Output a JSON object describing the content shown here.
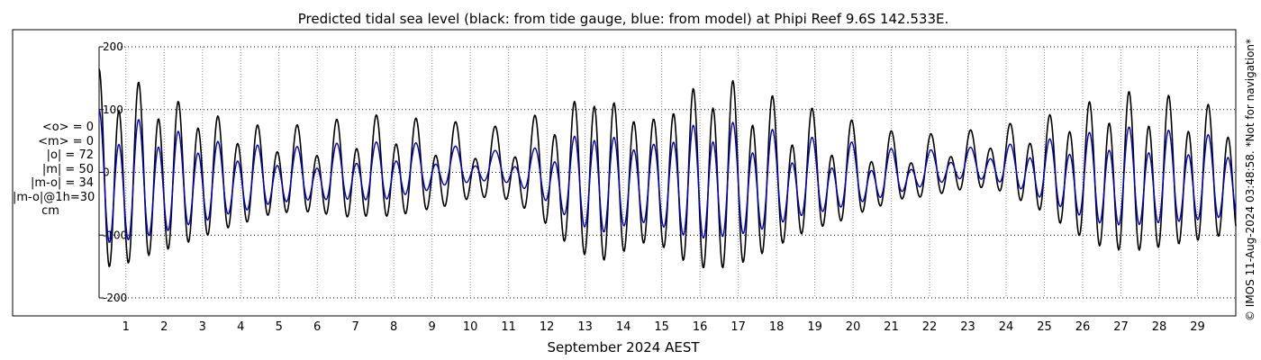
{
  "chart_data": {
    "type": "line",
    "title": "Predicted tidal sea level (black: from tide gauge, blue: from model) at Phipi Reef 9.6S 142.533E.",
    "xlabel": "September 2024 AEST",
    "ylabel": "",
    "ylim": [
      -200,
      200
    ],
    "yticks": [
      -200,
      -100,
      0,
      100,
      200
    ],
    "yticklabels": [
      "-200",
      "-100",
      "0",
      "100",
      "200"
    ],
    "xlim": [
      0.3,
      30.0
    ],
    "xticks": [
      1,
      2,
      3,
      4,
      5,
      6,
      7,
      8,
      9,
      10,
      11,
      12,
      13,
      14,
      15,
      16,
      17,
      18,
      19,
      20,
      21,
      22,
      23,
      24,
      25,
      26,
      27,
      28,
      29
    ],
    "xticklabels": [
      "1",
      "2",
      "3",
      "4",
      "5",
      "6",
      "7",
      "8",
      "9",
      "10",
      "11",
      "12",
      "13",
      "14",
      "15",
      "16",
      "17",
      "18",
      "19",
      "20",
      "21",
      "22",
      "23",
      "24",
      "25",
      "26",
      "27",
      "28",
      "29"
    ],
    "grid": true,
    "colors": {
      "gauge": "#000000",
      "model": "#0000cc",
      "grid": "#808080"
    },
    "series": [
      {
        "key": "gauge",
        "x": [
          0.3,
          0.8,
          1.3,
          1.8,
          2.3,
          2.8,
          3.3,
          3.8,
          4.3,
          4.8,
          5.3,
          5.8,
          6.3,
          6.8,
          7.3,
          7.8,
          8.3,
          8.8,
          9.3,
          9.8,
          10.3,
          10.8,
          11.3,
          11.8,
          12.3,
          12.8,
          13.3,
          13.8,
          14.3,
          14.8,
          15.3,
          15.8,
          16.3,
          16.8,
          17.3,
          17.8,
          18.3,
          18.8,
          19.3,
          19.8,
          20.3,
          20.8,
          21.3,
          21.8,
          22.3,
          22.8,
          23.3,
          23.8,
          24.3,
          24.8,
          25.3,
          25.8,
          26.3,
          26.8,
          27.3,
          27.8,
          28.3,
          28.8,
          29.3,
          29.8
        ],
        "amp": [
          175,
          170,
          155,
          138,
          125,
          112,
          102,
          92,
          85,
          82,
          80,
          82,
          88,
          92,
          93,
          90,
          88,
          85,
          82,
          75,
          70,
          68,
          78,
          95,
          112,
          125,
          135,
          125,
          105,
          100,
          120,
          148,
          160,
          162,
          155,
          140,
          125,
          115,
          105,
          95,
          85,
          72,
          65,
          60,
          58,
          55,
          55,
          60,
          70,
          80,
          95,
          110,
          125,
          135,
          140,
          138,
          132,
          125,
          118,
          110
        ],
        "mean": [
          -10,
          -10,
          -10,
          -10,
          -10,
          -10,
          -10,
          -10,
          -10,
          -5,
          -5,
          -5,
          -5,
          -5,
          0,
          0,
          0,
          0,
          0,
          5,
          5,
          5,
          0,
          0,
          -10,
          -10,
          -15,
          -15,
          -15,
          -15,
          -15,
          -15,
          -15,
          -15,
          -15,
          -15,
          -15,
          -10,
          -10,
          -10,
          -5,
          -5,
          0,
          0,
          5,
          10,
          15,
          15,
          10,
          5,
          0,
          -5,
          -10,
          -10,
          -10,
          -10,
          -10,
          -10,
          -10,
          -10
        ],
        "diurnal": [
          0.25,
          0.22,
          0.2,
          0.18,
          0.15,
          0.15,
          0.18,
          0.22,
          0.28,
          0.35,
          0.4,
          0.45,
          0.45,
          0.42,
          0.35,
          0.3,
          0.35,
          0.45,
          0.55,
          0.6,
          0.62,
          0.6,
          0.5,
          0.35,
          0.2,
          0.1,
          0.05,
          0.05,
          0.05,
          0.05,
          0.05,
          0.1,
          0.15,
          0.2,
          0.25,
          0.3,
          0.35,
          0.4,
          0.45,
          0.5,
          0.55,
          0.6,
          0.62,
          0.6,
          0.55,
          0.5,
          0.45,
          0.4,
          0.35,
          0.3,
          0.25,
          0.2,
          0.2,
          0.2,
          0.22,
          0.25,
          0.25,
          0.25,
          0.25,
          0.25
        ]
      },
      {
        "key": "model",
        "x": [
          0.3,
          0.8,
          1.3,
          1.8,
          2.3,
          2.8,
          3.3,
          3.8,
          4.3,
          4.8,
          5.3,
          5.8,
          6.3,
          6.8,
          7.3,
          7.8,
          8.3,
          8.8,
          9.3,
          9.8,
          10.3,
          10.8,
          11.3,
          11.8,
          12.3,
          12.8,
          13.3,
          13.8,
          14.3,
          14.8,
          15.3,
          15.8,
          16.3,
          16.8,
          17.3,
          17.8,
          18.3,
          18.8,
          19.3,
          19.8,
          20.3,
          20.8,
          21.3,
          21.8,
          22.3,
          22.8,
          23.3,
          23.8,
          24.3,
          24.8,
          25.3,
          25.8,
          26.3,
          26.8,
          27.3,
          27.8,
          28.3,
          28.8,
          29.3,
          29.8
        ],
        "amp": [
          120,
          115,
          105,
          95,
          85,
          75,
          68,
          62,
          58,
          55,
          52,
          50,
          52,
          55,
          55,
          52,
          50,
          45,
          40,
          35,
          30,
          30,
          35,
          45,
          60,
          75,
          85,
          75,
          65,
          65,
          80,
          95,
          100,
          100,
          98,
          90,
          80,
          72,
          68,
          62,
          55,
          48,
          40,
          35,
          32,
          30,
          30,
          35,
          40,
          50,
          60,
          70,
          80,
          85,
          88,
          85,
          82,
          80,
          75,
          72
        ],
        "mean": [
          -20,
          -20,
          -20,
          -20,
          -18,
          -18,
          -18,
          -15,
          -15,
          -10,
          -10,
          -10,
          -8,
          -5,
          -5,
          -5,
          0,
          0,
          5,
          5,
          5,
          5,
          0,
          -5,
          -15,
          -15,
          -20,
          -20,
          -20,
          -20,
          -20,
          -20,
          -20,
          -20,
          -20,
          -20,
          -18,
          -15,
          -15,
          -12,
          -10,
          -8,
          -5,
          0,
          5,
          10,
          10,
          10,
          5,
          0,
          -5,
          -10,
          -15,
          -15,
          -15,
          -15,
          -15,
          -15,
          -15,
          -15
        ],
        "diurnal": [
          0.3,
          0.28,
          0.25,
          0.22,
          0.2,
          0.2,
          0.22,
          0.28,
          0.35,
          0.42,
          0.48,
          0.52,
          0.52,
          0.5,
          0.45,
          0.4,
          0.45,
          0.55,
          0.65,
          0.7,
          0.72,
          0.7,
          0.6,
          0.45,
          0.28,
          0.15,
          0.08,
          0.08,
          0.08,
          0.08,
          0.08,
          0.12,
          0.18,
          0.25,
          0.3,
          0.35,
          0.4,
          0.45,
          0.5,
          0.55,
          0.6,
          0.65,
          0.68,
          0.65,
          0.6,
          0.55,
          0.5,
          0.45,
          0.4,
          0.35,
          0.3,
          0.28,
          0.25,
          0.25,
          0.28,
          0.3,
          0.3,
          0.3,
          0.3,
          0.3
        ]
      }
    ]
  },
  "stats": {
    "mean_obs": "<o> = 0",
    "mean_model": "<m> = 0",
    "abs_obs": "|o| = 72",
    "abs_model": "|m| = 50",
    "abs_diff": "|m-o| = 34",
    "abs_diff_1h": "|m-o|@1h=30",
    "unit": "cm"
  },
  "copyright": "© IMOS 11-Aug-2024 03:48:58. *Not for navigation*"
}
